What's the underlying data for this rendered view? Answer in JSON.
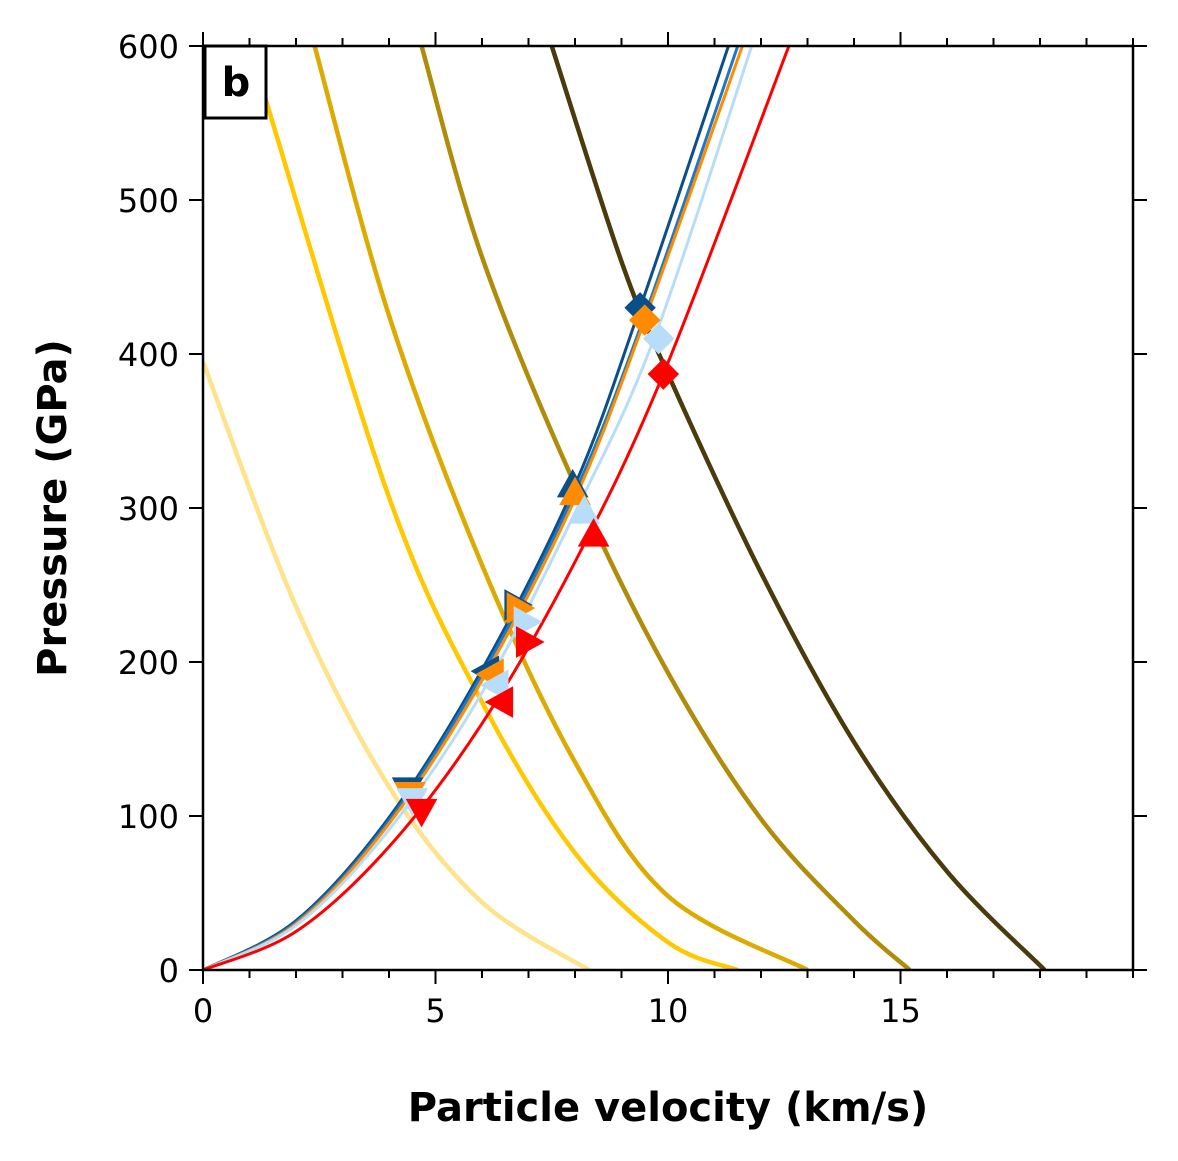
{
  "chart_data": {
    "type": "line",
    "panel_label": "b",
    "xlabel": "Particle velocity (km/s)",
    "ylabel": "Pressure (GPa)",
    "xlim": [
      0,
      20
    ],
    "ylim": [
      0,
      600
    ],
    "xticks": [
      0,
      5,
      10,
      15
    ],
    "xtick_labels": [
      "0",
      "5",
      "10",
      "15"
    ],
    "yticks": [
      0,
      100,
      200,
      300,
      400,
      500,
      600
    ],
    "ytick_labels": [
      "0",
      "100",
      "200",
      "300",
      "400",
      "500",
      "600"
    ],
    "grid": false,
    "legend": "none",
    "hugoniots": [
      {
        "color": "#0b4f8a",
        "points": [
          [
            0,
            0
          ],
          [
            2,
            32
          ],
          [
            4,
            99
          ],
          [
            6,
            195
          ],
          [
            8,
            315
          ],
          [
            9.4,
            430
          ],
          [
            11.3,
            600
          ]
        ]
      },
      {
        "color": "#1e78c8",
        "points": [
          [
            0,
            0
          ],
          [
            2,
            31
          ],
          [
            4,
            97
          ],
          [
            6,
            192
          ],
          [
            8,
            310
          ],
          [
            9.5,
            425
          ],
          [
            11.5,
            600
          ]
        ]
      },
      {
        "color": "#ff8c00",
        "points": [
          [
            0,
            0
          ],
          [
            2,
            30
          ],
          [
            4,
            95
          ],
          [
            6,
            188
          ],
          [
            8,
            306
          ],
          [
            9.5,
            422
          ],
          [
            11.6,
            600
          ]
        ]
      },
      {
        "color": "#b8ddf8",
        "points": [
          [
            0,
            0
          ],
          [
            2,
            29
          ],
          [
            4,
            91
          ],
          [
            6,
            180
          ],
          [
            8,
            297
          ],
          [
            9.7,
            410
          ],
          [
            11.8,
            600
          ]
        ]
      },
      {
        "color": "#ff0000",
        "points": [
          [
            0,
            0
          ],
          [
            2,
            25
          ],
          [
            4,
            80
          ],
          [
            6,
            160
          ],
          [
            8,
            265
          ],
          [
            9.9,
            387
          ],
          [
            12.6,
            600
          ]
        ]
      }
    ],
    "release_curves": [
      {
        "color": "#ffe38a",
        "points": [
          [
            0,
            395
          ],
          [
            2,
            236
          ],
          [
            4,
            119
          ],
          [
            6,
            44
          ],
          [
            8.3,
            0
          ]
        ]
      },
      {
        "color": "#ffc800",
        "points": [
          [
            1.3,
            570
          ],
          [
            4,
            307
          ],
          [
            6,
            174
          ],
          [
            8,
            76
          ],
          [
            10,
            18
          ],
          [
            11.5,
            0
          ]
        ]
      },
      {
        "color": "#dcaa00",
        "points": [
          [
            2.4,
            600
          ],
          [
            4,
            425
          ],
          [
            6,
            263
          ],
          [
            8,
            135
          ],
          [
            10,
            48
          ],
          [
            13,
            0
          ]
        ]
      },
      {
        "color": "#b08c0a",
        "points": [
          [
            4.7,
            600
          ],
          [
            6,
            463
          ],
          [
            8,
            315
          ],
          [
            10,
            193
          ],
          [
            12,
            98
          ],
          [
            14,
            32
          ],
          [
            15.2,
            0
          ]
        ]
      },
      {
        "color": "#4a3a0c",
        "points": [
          [
            7.5,
            600
          ],
          [
            9,
            460
          ],
          [
            10,
            387
          ],
          [
            12,
            258
          ],
          [
            14,
            148
          ],
          [
            16,
            64
          ],
          [
            18.1,
            0
          ]
        ]
      }
    ],
    "markers": [
      {
        "shape": "diamond",
        "x": 9.4,
        "y": 430,
        "color": "#0b4f8a"
      },
      {
        "shape": "diamond",
        "x": 9.5,
        "y": 422,
        "color": "#ff8c00"
      },
      {
        "shape": "diamond",
        "x": 9.8,
        "y": 410,
        "color": "#b8ddf8"
      },
      {
        "shape": "diamond",
        "x": 9.9,
        "y": 387,
        "color": "#ff0000"
      },
      {
        "shape": "triangle-up",
        "x": 7.95,
        "y": 315,
        "color": "#0b4f8a"
      },
      {
        "shape": "triangle-up",
        "x": 8.0,
        "y": 310,
        "color": "#ff8c00"
      },
      {
        "shape": "triangle-up",
        "x": 8.2,
        "y": 298,
        "color": "#b8ddf8"
      },
      {
        "shape": "triangle-up",
        "x": 8.4,
        "y": 283,
        "color": "#ff0000"
      },
      {
        "shape": "triangle-right",
        "x": 6.75,
        "y": 237,
        "color": "#0b4f8a"
      },
      {
        "shape": "triangle-right",
        "x": 6.8,
        "y": 235,
        "color": "#ff8c00"
      },
      {
        "shape": "triangle-right",
        "x": 6.95,
        "y": 226,
        "color": "#b8ddf8"
      },
      {
        "shape": "triangle-right",
        "x": 7.0,
        "y": 213,
        "color": "#ff0000"
      },
      {
        "shape": "triangle-left",
        "x": 6.1,
        "y": 194,
        "color": "#0b4f8a"
      },
      {
        "shape": "triangle-left",
        "x": 6.2,
        "y": 192,
        "color": "#ff8c00"
      },
      {
        "shape": "triangle-left",
        "x": 6.3,
        "y": 185,
        "color": "#b8ddf8"
      },
      {
        "shape": "triangle-left",
        "x": 6.4,
        "y": 174,
        "color": "#ff0000"
      },
      {
        "shape": "triangle-down",
        "x": 4.4,
        "y": 117,
        "color": "#0b4f8a"
      },
      {
        "shape": "triangle-down",
        "x": 4.45,
        "y": 114,
        "color": "#ff8c00"
      },
      {
        "shape": "triangle-down",
        "x": 4.5,
        "y": 110,
        "color": "#b8ddf8"
      },
      {
        "shape": "triangle-down",
        "x": 4.7,
        "y": 103,
        "color": "#ff0000"
      }
    ]
  }
}
